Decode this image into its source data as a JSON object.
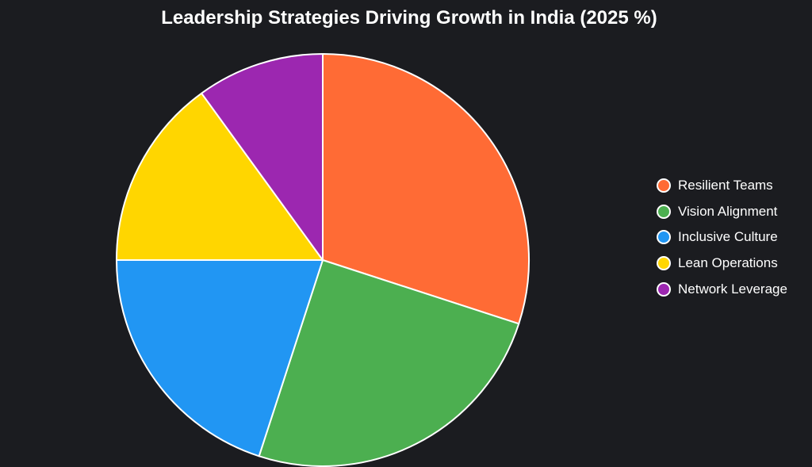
{
  "chart_data": {
    "type": "pie",
    "title": "Leadership Strategies Driving Growth in India (2025 %)",
    "categories": [
      "Resilient Teams",
      "Vision Alignment",
      "Inclusive Culture",
      "Lean Operations",
      "Network Leverage"
    ],
    "values": [
      30,
      25,
      20,
      15,
      10
    ],
    "colors": [
      "#ff6b35",
      "#4caf50",
      "#2196f3",
      "#ffd600",
      "#9c27b0"
    ],
    "legend_position": "right",
    "slice_border_color": "#ffffff",
    "start_angle": "top",
    "direction": "clockwise"
  }
}
